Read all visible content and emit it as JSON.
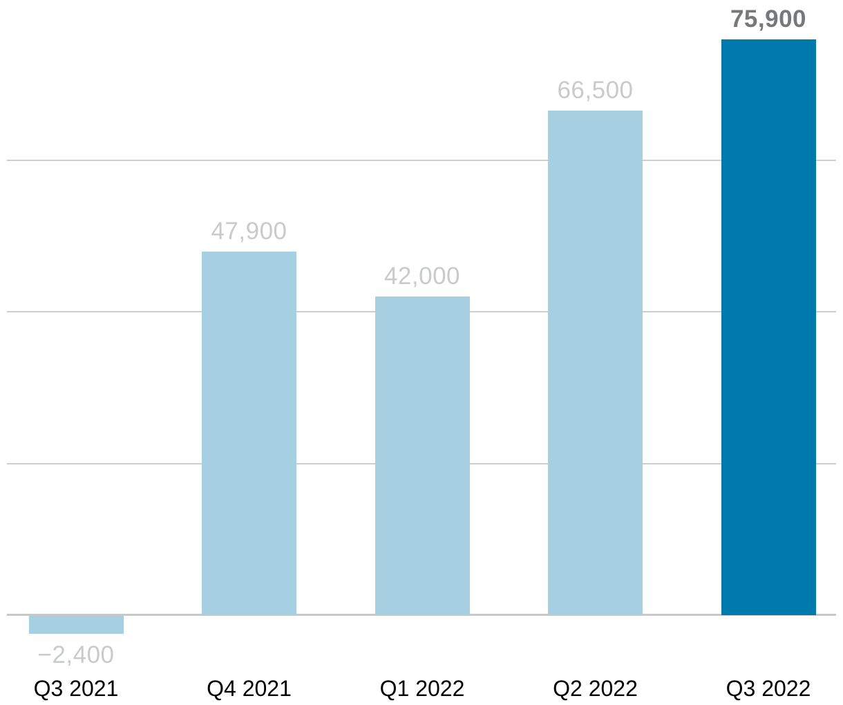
{
  "chart_data": {
    "type": "bar",
    "title": "",
    "xlabel": "",
    "ylabel": "",
    "categories": [
      "Q3 2021",
      "Q4 2021",
      "Q1 2022",
      "Q2 2022",
      "Q3 2022"
    ],
    "values": [
      -2400,
      47900,
      42000,
      66500,
      75900
    ],
    "value_labels": [
      "−2,400",
      "47,900",
      "42,000",
      "66,500",
      "75,900"
    ],
    "highlight_index": 4,
    "ylim": [
      -10000,
      81000
    ],
    "gridline_values": [
      20000,
      40000,
      60000
    ],
    "zero_line_value": 0,
    "grid_on": true,
    "legend_position": "none",
    "colors": {
      "bar": "#a7cfe2",
      "bar_highlight": "#0079ad",
      "value_label": "#c9cacb",
      "value_label_highlight": "#77787b",
      "category_label": "#000000",
      "gridline": "#cdcdcd",
      "zero_line": "#c8c8c8",
      "background": "#ffffff"
    }
  }
}
